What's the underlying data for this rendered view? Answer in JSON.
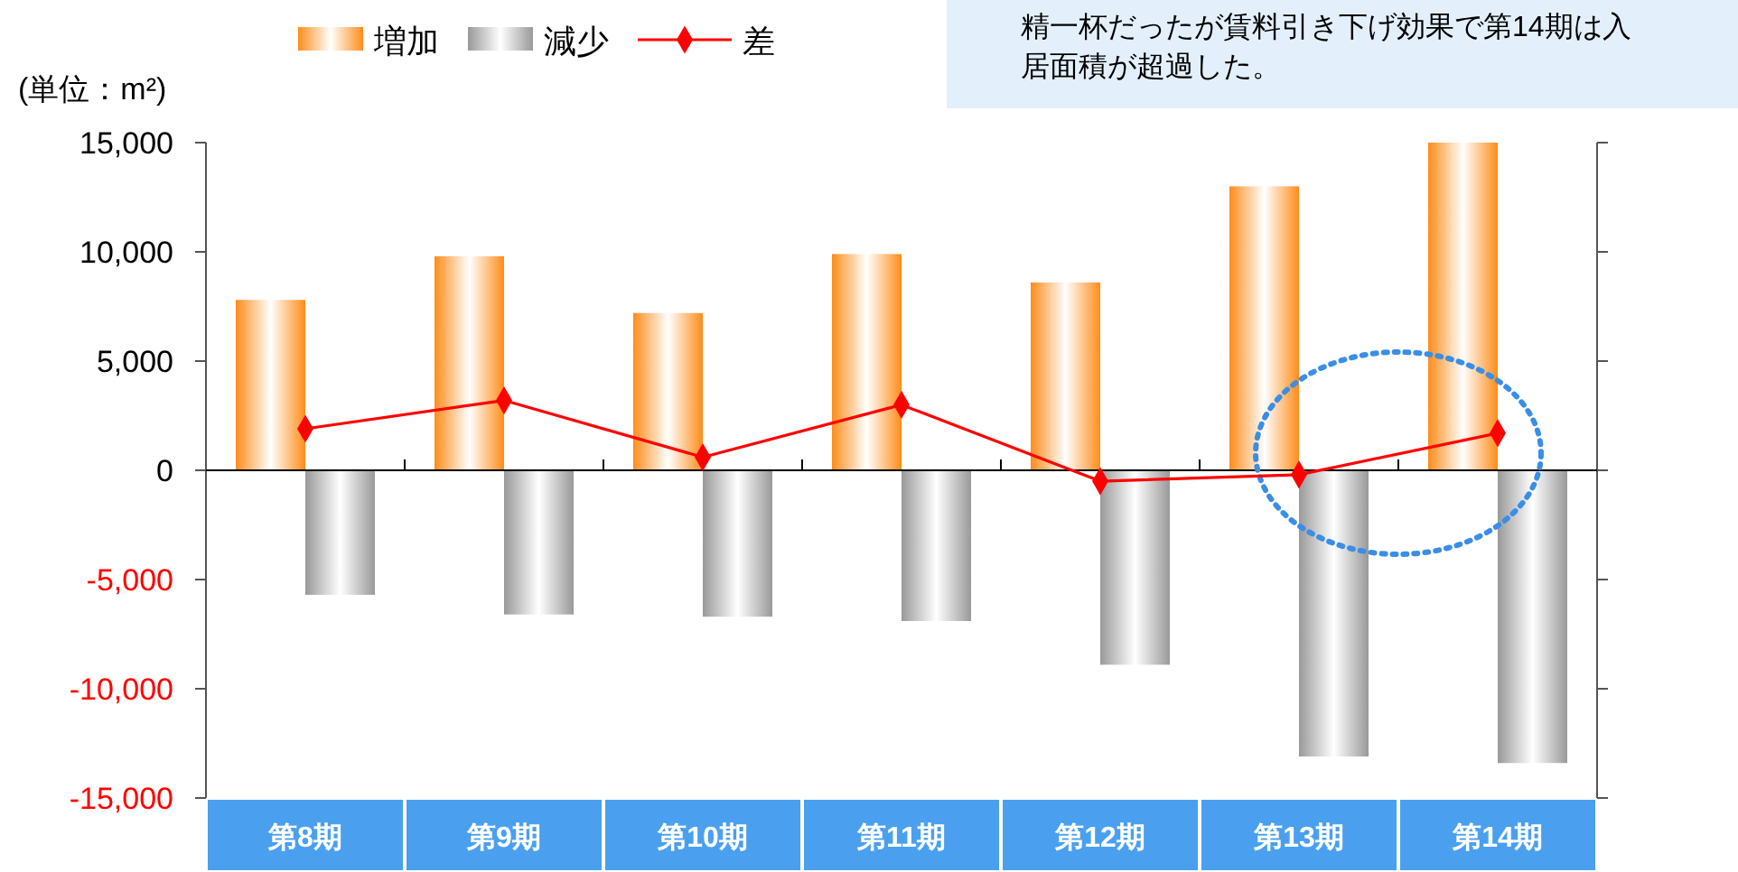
{
  "chart_data": {
    "type": "bar",
    "ylabel": "(単位：m²)",
    "legend": "top",
    "categories": [
      "第8期",
      "第9期",
      "第10期",
      "第11期",
      "第12期",
      "第13期",
      "第14期"
    ],
    "series": [
      {
        "name": "増加",
        "color": "#ff8c1a",
        "values": [
          7800,
          9800,
          7200,
          9900,
          8600,
          13000,
          15000
        ]
      },
      {
        "name": "減少",
        "color": "#999999",
        "values": [
          -5700,
          -6600,
          -6700,
          -6900,
          -8900,
          -13100,
          -13400
        ]
      },
      {
        "name": "差",
        "type": "line",
        "color": "#ff0000",
        "marker": "diamond",
        "values": [
          1900,
          3200,
          600,
          3000,
          -500,
          -200,
          1700
        ]
      }
    ],
    "ylim": [
      -15000,
      15000
    ],
    "yticks": [
      {
        "value": -15000,
        "label": "-15,000"
      },
      {
        "value": -10000,
        "label": "-10,000"
      },
      {
        "value": -5000,
        "label": "-5,000"
      },
      0,
      {
        "value": 5000,
        "label": "5,000"
      },
      {
        "value": 10000,
        "label": "10,000"
      },
      {
        "value": 15000,
        "label": "15,000"
      }
    ],
    "annotations": [
      "精一杯だったが賃料引き下げ効果で第14期は入居面積が超過した。"
    ]
  }
}
